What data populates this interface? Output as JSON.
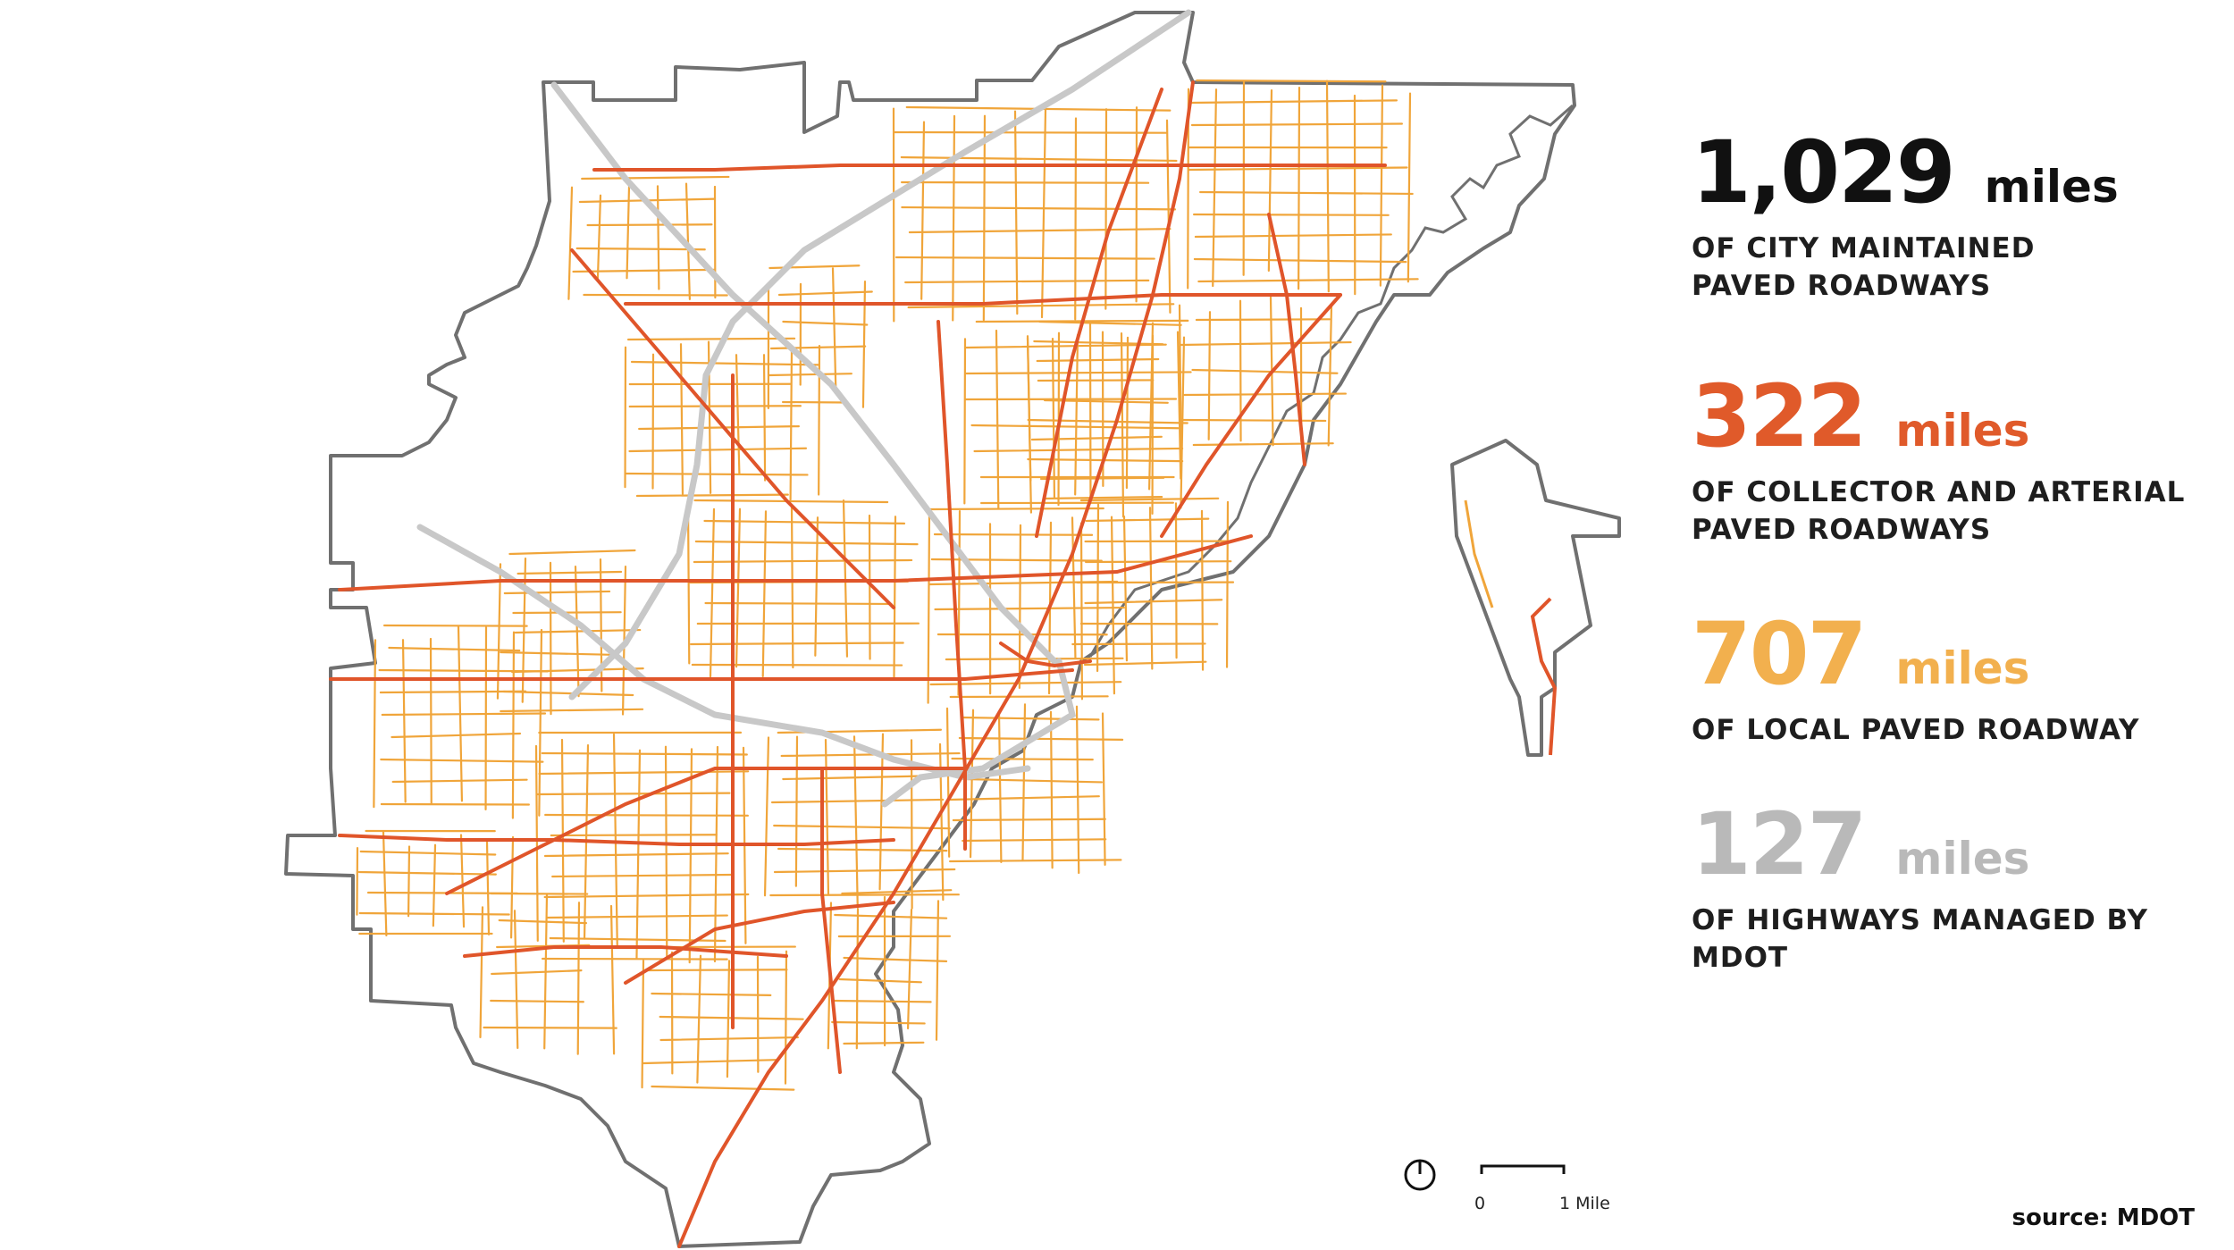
{
  "stats": [
    {
      "value": "1,029",
      "unit": "miles",
      "description": "OF CITY MAINTAINED\nPAVED ROADWAYS",
      "color": "#111111"
    },
    {
      "value": "322",
      "unit": "miles",
      "description": "OF COLLECTOR AND ARTERIAL\nPAVED ROADWAYS",
      "color": "#e05a2a"
    },
    {
      "value": "707",
      "unit": "miles",
      "description": "OF LOCAL PAVED ROADWAY",
      "color": "#f2b04e"
    },
    {
      "value": "127",
      "unit": "miles",
      "description": "OF HIGHWAYS MANAGED BY MDOT",
      "color": "#b9b9b9"
    }
  ],
  "scale_bar": {
    "start_label": "0",
    "end_label": "1 Mile"
  },
  "source": "source: MDOT",
  "map_colors": {
    "boundary": "#707070",
    "local_roads": "#f0a53a",
    "arterial_roads": "#e0552a",
    "highways": "#c8c8c8"
  }
}
